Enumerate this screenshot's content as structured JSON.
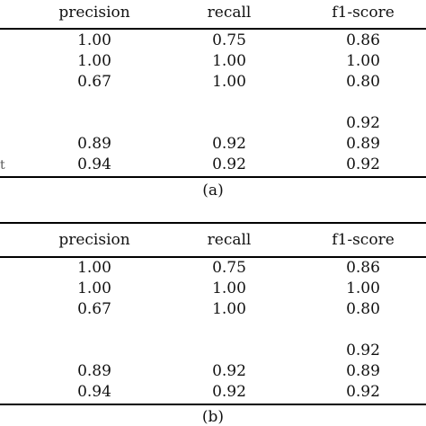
{
  "tables": [
    {
      "headers": [
        "precision",
        "recall",
        "f1-score"
      ],
      "rows": [
        [
          "1.00",
          "0.75",
          "0.86"
        ],
        [
          "1.00",
          "1.00",
          "1.00"
        ],
        [
          "0.67",
          "1.00",
          "0.80"
        ],
        [
          "",
          "",
          ""
        ],
        [
          "",
          "",
          "0.92"
        ],
        [
          "0.89",
          "0.92",
          "0.89"
        ],
        [
          "0.94",
          "0.92",
          "0.92"
        ]
      ],
      "caption": "(a)",
      "cut_glyph": "t"
    },
    {
      "headers": [
        "precision",
        "recall",
        "f1-score"
      ],
      "rows": [
        [
          "1.00",
          "0.75",
          "0.86"
        ],
        [
          "1.00",
          "1.00",
          "1.00"
        ],
        [
          "0.67",
          "1.00",
          "0.80"
        ],
        [
          "",
          "",
          ""
        ],
        [
          "",
          "",
          "0.92"
        ],
        [
          "0.89",
          "0.92",
          "0.89"
        ],
        [
          "0.94",
          "0.92",
          "0.92"
        ]
      ],
      "caption": "(b)"
    }
  ]
}
